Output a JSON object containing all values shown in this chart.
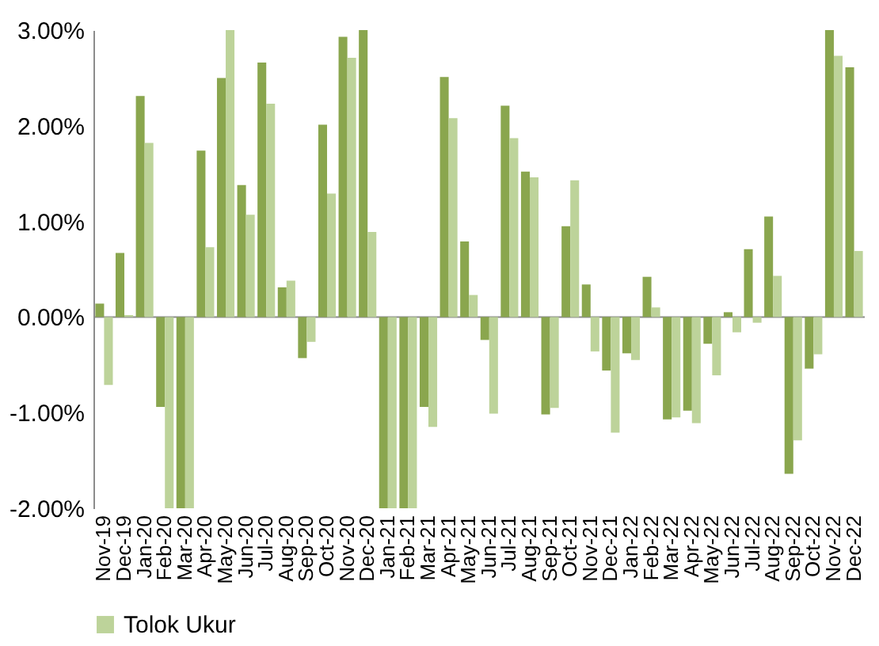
{
  "chart_data": {
    "type": "bar",
    "categories": [
      "Nov-19",
      "Dec-19",
      "Jan-20",
      "Feb-20",
      "Mar-20",
      "Apr-20",
      "May-20",
      "Jun-20",
      "Jul-20",
      "Aug-20",
      "Sep-20",
      "Oct-20",
      "Nov-20",
      "Dec-20",
      "Jan-21",
      "Feb-21",
      "Mar-21",
      "Apr-21",
      "May-21",
      "Jun-21",
      "Jul-21",
      "Aug-21",
      "Sep-21",
      "Oct-21",
      "Nov-21",
      "Dec-21",
      "Jan-22",
      "Feb-22",
      "Mar-22",
      "Apr-22",
      "May-22",
      "Jun-22",
      "Jul-22",
      "Aug-22",
      "Sep-22",
      "Oct-22",
      "Nov-22",
      "Dec-22"
    ],
    "series": [
      {
        "color": "#8aa64e",
        "values": [
          0.14,
          0.67,
          2.31,
          -0.94,
          -2.0,
          1.74,
          2.5,
          1.38,
          2.66,
          0.31,
          -0.43,
          2.01,
          2.93,
          3.0,
          -2.0,
          -2.0,
          -0.94,
          2.51,
          0.79,
          -0.24,
          2.21,
          1.52,
          -1.02,
          0.95,
          0.34,
          -0.56,
          -0.38,
          0.42,
          -1.07,
          -0.98,
          -0.28,
          0.05,
          0.71,
          1.05,
          -1.64,
          -0.54,
          3.0,
          2.61
        ]
      },
      {
        "name": "Tolok Ukur",
        "color": "#bdd39a",
        "values": [
          -0.71,
          0.02,
          1.82,
          -2.0,
          -2.0,
          0.73,
          3.0,
          1.07,
          2.23,
          0.38,
          -0.26,
          1.29,
          2.71,
          0.89,
          -2.0,
          -2.0,
          -1.15,
          2.08,
          0.23,
          -1.01,
          1.87,
          1.46,
          -0.95,
          1.43,
          -0.36,
          -1.21,
          -0.45,
          0.1,
          -1.05,
          -1.11,
          -0.61,
          -0.16,
          -0.06,
          0.43,
          -1.29,
          -0.39,
          2.73,
          0.69
        ]
      }
    ],
    "ylim": [
      -2,
      3
    ],
    "yticks": [
      {
        "value": -2,
        "label": "-2.00%"
      },
      {
        "value": -1,
        "label": "-1.00%"
      },
      {
        "value": 0,
        "label": "0.00%"
      },
      {
        "value": 1,
        "label": "1.00%"
      },
      {
        "value": 2,
        "label": "2.00%"
      },
      {
        "value": 3,
        "label": "3.00%"
      }
    ],
    "ref_lines": [
      {
        "axis": "y",
        "value": 0,
        "color": "#8c8c8c"
      }
    ],
    "grid": false,
    "legend": "bottom"
  }
}
